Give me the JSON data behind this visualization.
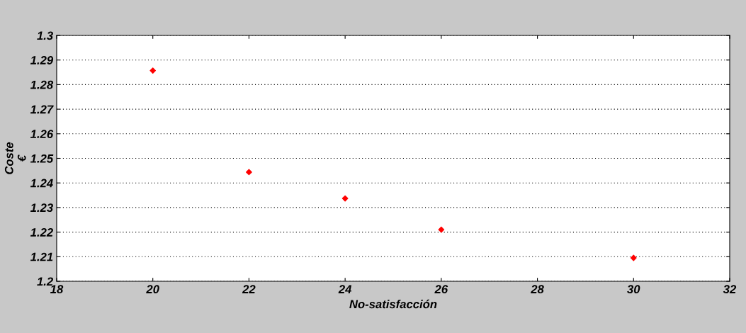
{
  "chart_data": {
    "type": "scatter",
    "xlabel": "No-satisfacción",
    "ylabel": "Coste\n€",
    "x": [
      20,
      22,
      24,
      26,
      30
    ],
    "series": [
      {
        "color": "#ff0000",
        "values": [
          1.2857,
          1.2444,
          1.2337,
          1.221,
          1.2095
        ]
      }
    ],
    "xlim": [
      18,
      32
    ],
    "xticks": [
      18,
      20,
      22,
      24,
      26,
      28,
      30,
      32
    ],
    "ylim": [
      1.2,
      1.3
    ],
    "yticks": [
      {
        "value": 1.2,
        "label": "1.2"
      },
      1.21,
      1.22,
      1.23,
      1.24,
      1.25,
      1.26,
      1.27,
      1.28,
      1.29,
      {
        "value": 1.3,
        "label": "1.3"
      }
    ],
    "grid": "y",
    "marker": "diamond",
    "legend": false
  }
}
